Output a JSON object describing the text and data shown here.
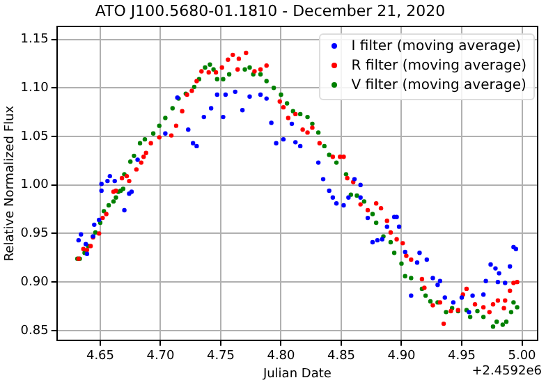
{
  "chart_data": {
    "type": "scatter",
    "title": "ATO J100.5680-01.1810 - December 21, 2020",
    "xlabel": "Julian Date",
    "ylabel": "Relative Normalized Flux",
    "annotations": [
      "+2.4592e6"
    ],
    "xlim": [
      4.614,
      5.013
    ],
    "ylim": [
      0.84,
      1.163
    ],
    "xticks": [
      {
        "value": 4.65,
        "label": "4.65"
      },
      {
        "value": 4.7,
        "label": "4.70"
      },
      {
        "value": 4.75,
        "label": "4.75"
      },
      {
        "value": 4.8,
        "label": "4.80"
      },
      {
        "value": 4.85,
        "label": "4.85"
      },
      {
        "value": 4.9,
        "label": "4.90"
      },
      {
        "value": 4.95,
        "label": "4.95"
      },
      {
        "value": 5,
        "label": "5.00"
      }
    ],
    "yticks": [
      {
        "value": 0.85,
        "label": "0.85"
      },
      {
        "value": 0.9,
        "label": "0.90"
      },
      {
        "value": 0.95,
        "label": "0.95"
      },
      {
        "value": 1,
        "label": "1.00"
      },
      {
        "value": 1.05,
        "label": "1.05"
      },
      {
        "value": 1.1,
        "label": "1.10"
      },
      {
        "value": 1.15,
        "label": "1.15"
      }
    ],
    "grid": true,
    "legend": "top right",
    "marker": "circle",
    "series": [
      {
        "name": "I filter (moving average)",
        "color": "#0000ff",
        "x": [
          4.632,
          4.634,
          4.638,
          4.639,
          4.644,
          4.645,
          4.649,
          4.651,
          4.651,
          4.656,
          4.658,
          4.662,
          4.67,
          4.674,
          4.676,
          4.681,
          4.704,
          4.714,
          4.723,
          4.727,
          4.73,
          4.736,
          4.742,
          4.747,
          4.752,
          4.754,
          4.762,
          4.768,
          4.774,
          4.783,
          4.788,
          4.792,
          4.796,
          4.802,
          4.809,
          4.812,
          4.816,
          4.831,
          4.835,
          4.84,
          4.843,
          4.846,
          4.852,
          4.856,
          4.861,
          4.866,
          4.866,
          4.872,
          4.876,
          4.88,
          4.884,
          4.888,
          4.894,
          4.896,
          4.898,
          4.903,
          4.908,
          4.913,
          4.915,
          4.921,
          4.926,
          4.93,
          4.932,
          4.936,
          4.943,
          4.95,
          4.956,
          4.959,
          4.968,
          4.97,
          4.974,
          4.978,
          4.98,
          4.981,
          4.986,
          4.99,
          4.993,
          4.995
        ],
        "values": [
          0.943,
          0.949,
          0.939,
          0.929,
          0.947,
          0.959,
          0.964,
          0.994,
          1.001,
          1.004,
          1.009,
          1.004,
          0.974,
          0.991,
          0.993,
          1.026,
          1.053,
          1.09,
          1.057,
          1.043,
          1.04,
          1.07,
          1.079,
          1.093,
          1.07,
          1.093,
          1.096,
          1.077,
          1.091,
          1.093,
          1.089,
          1.064,
          1.043,
          1.047,
          1.063,
          1.044,
          1.04,
          1.023,
          1.006,
          0.994,
          0.987,
          0.981,
          0.979,
          0.987,
          1.006,
          1.0,
          0.987,
          0.966,
          0.941,
          0.943,
          0.944,
          0.957,
          0.967,
          0.967,
          0.957,
          0.931,
          0.886,
          0.92,
          0.93,
          0.923,
          0.904,
          0.897,
          0.901,
          0.884,
          0.879,
          0.884,
          0.869,
          0.886,
          0.887,
          0.901,
          0.918,
          0.914,
          0.9,
          0.909,
          0.899,
          0.916,
          0.936,
          0.934
        ]
      },
      {
        "name": "R filter (moving average)",
        "color": "#ff0000",
        "x": [
          4.632,
          4.636,
          4.639,
          4.642,
          4.644,
          4.649,
          4.652,
          4.655,
          4.661,
          4.663,
          4.668,
          4.672,
          4.674,
          4.68,
          4.684,
          4.686,
          4.688,
          4.692,
          4.699,
          4.709,
          4.713,
          4.718,
          4.722,
          4.726,
          4.73,
          4.734,
          4.74,
          4.746,
          4.751,
          4.756,
          4.76,
          4.764,
          4.765,
          4.771,
          4.778,
          4.783,
          4.788,
          4.799,
          4.802,
          4.806,
          4.812,
          4.818,
          4.822,
          4.826,
          4.832,
          4.843,
          4.849,
          4.852,
          4.855,
          4.86,
          4.866,
          4.872,
          4.879,
          4.883,
          4.888,
          4.891,
          4.896,
          4.901,
          4.904,
          4.908,
          4.917,
          4.919,
          4.926,
          4.932,
          4.935,
          4.941,
          4.947,
          4.951,
          4.954,
          4.961,
          4.968,
          4.973,
          4.976,
          4.98,
          4.985,
          4.986,
          4.99,
          4.993,
          4.996
        ],
        "values": [
          0.924,
          0.934,
          0.933,
          0.937,
          0.946,
          0.95,
          0.966,
          0.97,
          0.993,
          0.994,
          1.007,
          1.009,
          1.004,
          1.016,
          1.023,
          1.029,
          1.033,
          1.043,
          1.049,
          1.051,
          1.061,
          1.076,
          1.093,
          1.097,
          1.107,
          1.117,
          1.116,
          1.116,
          1.121,
          1.129,
          1.134,
          1.119,
          1.13,
          1.136,
          1.117,
          1.119,
          1.123,
          1.086,
          1.08,
          1.069,
          1.073,
          1.057,
          1.054,
          1.059,
          1.043,
          1.029,
          1.029,
          1.029,
          1.007,
          1.003,
          0.98,
          0.974,
          0.981,
          0.976,
          0.963,
          0.951,
          0.944,
          0.94,
          0.927,
          0.923,
          0.903,
          0.894,
          0.876,
          0.879,
          0.857,
          0.87,
          0.871,
          0.887,
          0.893,
          0.877,
          0.874,
          0.869,
          0.877,
          0.881,
          0.873,
          0.881,
          0.891,
          0.899,
          0.9
        ]
      },
      {
        "name": "V filter (moving average)",
        "color": "#008000",
        "x": [
          4.631,
          4.633,
          4.637,
          4.64,
          4.644,
          4.646,
          4.65,
          4.653,
          4.657,
          4.661,
          4.663,
          4.665,
          4.667,
          4.669,
          4.67,
          4.675,
          4.678,
          4.683,
          4.687,
          4.694,
          4.699,
          4.704,
          4.71,
          4.715,
          4.721,
          4.728,
          4.732,
          4.737,
          4.741,
          4.744,
          4.747,
          4.752,
          4.757,
          4.764,
          4.77,
          4.774,
          4.777,
          4.783,
          4.788,
          4.794,
          4.8,
          4.805,
          4.81,
          4.816,
          4.822,
          4.826,
          4.831,
          4.836,
          4.84,
          4.846,
          4.854,
          4.858,
          4.863,
          4.869,
          4.876,
          4.879,
          4.885,
          4.891,
          4.894,
          4.9,
          4.903,
          4.908,
          4.917,
          4.92,
          4.924,
          4.93,
          4.937,
          4.942,
          4.947,
          4.954,
          4.957,
          4.963,
          4.968,
          4.976,
          4.979,
          4.984,
          4.987,
          4.991,
          4.993,
          4.996
        ],
        "values": [
          0.924,
          0.924,
          0.93,
          0.937,
          0.947,
          0.951,
          0.961,
          0.973,
          0.979,
          0.983,
          0.987,
          0.993,
          0.994,
          0.996,
          1.011,
          1.024,
          1.03,
          1.043,
          1.047,
          1.053,
          1.061,
          1.069,
          1.079,
          1.089,
          1.094,
          1.101,
          1.109,
          1.121,
          1.124,
          1.119,
          1.109,
          1.109,
          1.114,
          null,
          1.119,
          1.121,
          1.114,
          1.114,
          1.107,
          1.1,
          1.093,
          1.084,
          1.076,
          1.073,
          1.07,
          1.063,
          1.054,
          1.04,
          1.031,
          1.023,
          1.011,
          0.99,
          0.989,
          0.983,
          0.97,
          0.961,
          0.947,
          0.941,
          0.93,
          0.919,
          0.906,
          0.904,
          0.893,
          0.886,
          0.88,
          0.879,
          0.869,
          0.873,
          0.87,
          0.871,
          0.864,
          0.87,
          0.864,
          0.854,
          0.859,
          0.856,
          0.859,
          0.869,
          0.879,
          0.874
        ]
      }
    ]
  }
}
